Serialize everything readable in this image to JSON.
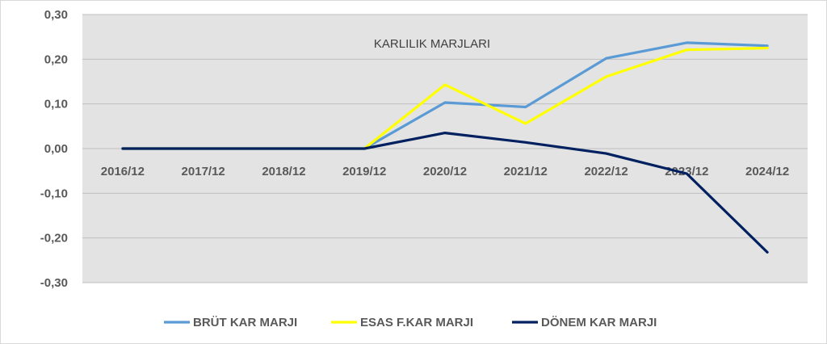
{
  "chart_data": {
    "type": "line",
    "title": "KARLILIK MARJLARI",
    "categories": [
      "2016/12",
      "2017/12",
      "2018/12",
      "2019/12",
      "2020/12",
      "2021/12",
      "2022/12",
      "2023/12",
      "2024/12"
    ],
    "y_ticks": [
      "0,30",
      "0,20",
      "0,10",
      "0,00",
      "-0,10",
      "-0,20",
      "-0,30"
    ],
    "ylim": [
      -0.3,
      0.3
    ],
    "grid": true,
    "legend_position": "bottom",
    "series": [
      {
        "name": "BRÜT KAR MARJI",
        "color": "#5b9bd5",
        "values": [
          0,
          0,
          0,
          0,
          0.103,
          0.093,
          0.202,
          0.237,
          0.23
        ]
      },
      {
        "name": "ESAS F.KAR MARJI",
        "color": "#ffff00",
        "values": [
          0,
          0,
          0,
          0,
          0.143,
          0.056,
          0.161,
          0.221,
          0.225
        ]
      },
      {
        "name": "DÖNEM KAR MARJI",
        "color": "#002060",
        "values": [
          0,
          0,
          0,
          0,
          0.035,
          0.014,
          -0.011,
          -0.056,
          -0.232
        ]
      }
    ]
  }
}
